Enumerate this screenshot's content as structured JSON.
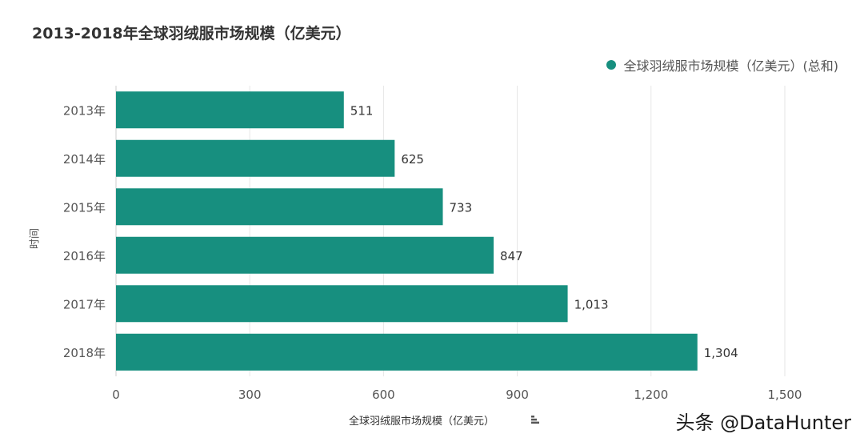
{
  "title": "2013-2018年全球羽绒服市场规模（亿美元）",
  "legend": {
    "label": "全球羽绒服市场规模（亿美元）(总和)",
    "color": "#178f7f"
  },
  "watermark": "头条 @DataHunter",
  "chart_data": {
    "type": "bar",
    "orientation": "horizontal",
    "categories": [
      "2013年",
      "2014年",
      "2015年",
      "2016年",
      "2017年",
      "2018年"
    ],
    "values": [
      511,
      625,
      733,
      847,
      1013,
      1304
    ],
    "value_labels": [
      "511",
      "625",
      "733",
      "847",
      "1,013",
      "1,304"
    ],
    "xlabel": "全球羽绒服市场规模（亿美元）",
    "ylabel": "时间",
    "xlim": [
      0,
      1500
    ],
    "x_ticks": [
      0,
      300,
      600,
      900,
      1200,
      1500
    ],
    "x_tick_labels": [
      "0",
      "300",
      "600",
      "900",
      "1,200",
      "1,500"
    ],
    "grid": true,
    "legend_position": "top-right",
    "bar_color": "#178f7f"
  }
}
